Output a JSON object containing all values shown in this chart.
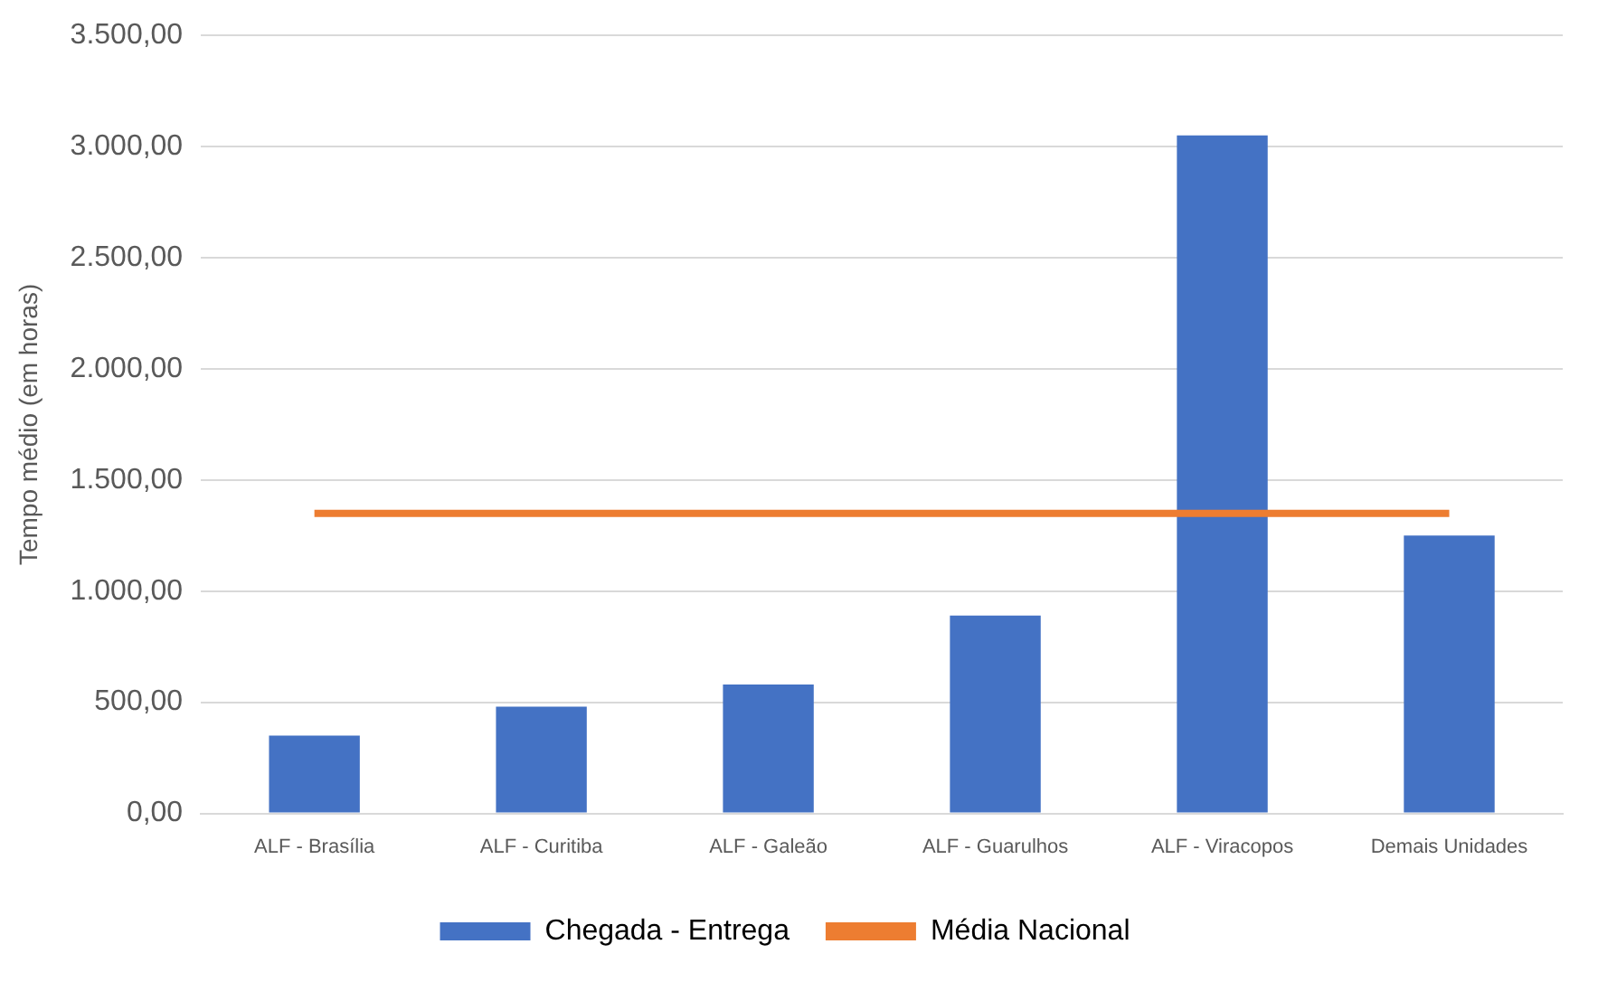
{
  "chart_data": {
    "type": "bar",
    "ylabel": "Tempo médio (em horas)",
    "categories": [
      "ALF - Brasília",
      "ALF - Curitiba",
      "ALF - Galeão",
      "ALF - Guarulhos",
      "ALF - Viracopos",
      "Demais Unidades"
    ],
    "series": [
      {
        "name": "Chegada - Entrega",
        "color": "#4472c4",
        "values": [
          350,
          480,
          580,
          890,
          3050,
          1250
        ]
      },
      {
        "name": "Média Nacional",
        "type": "line",
        "color": "#ed7d31",
        "marker": "none",
        "values": [
          1350,
          1350,
          1350,
          1350,
          1350,
          1350
        ]
      }
    ],
    "ylim": [
      0,
      3500
    ],
    "yticks": [
      {
        "value": 0,
        "label": "0,00"
      },
      {
        "value": 500,
        "label": "500,00"
      },
      {
        "value": 1000,
        "label": "1.000,00"
      },
      {
        "value": 1500,
        "label": "1.500,00"
      },
      {
        "value": 2000,
        "label": "2.000,00"
      },
      {
        "value": 2500,
        "label": "2.500,00"
      },
      {
        "value": 3000,
        "label": "3.000,00"
      },
      {
        "value": 3500,
        "label": "3.500,00"
      }
    ],
    "grid": "y",
    "legend": "bottom"
  }
}
